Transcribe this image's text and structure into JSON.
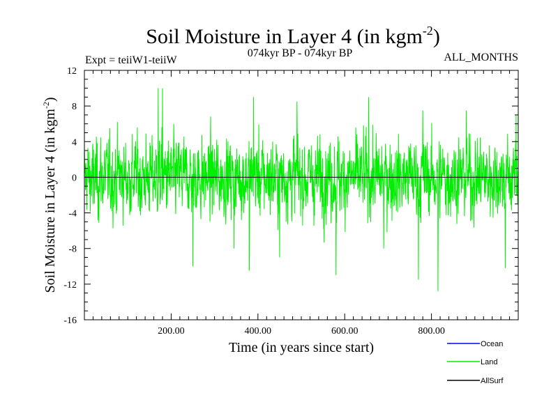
{
  "chart_data": {
    "type": "line",
    "title": "Soil Moisture in Layer 4 (in kgm",
    "title_sup": "-2",
    "title_close": ")",
    "subtitle_left": "Expt = teiiW1-teiiW",
    "subtitle_center": "074kyr BP - 074kyr BP",
    "subtitle_right": "ALL_MONTHS",
    "xlabel": "Time (in years since start)",
    "ylabel": "Soil Moisture in Layer 4 (in kgm",
    "ylabel_sup": "-2",
    "ylabel_close": ")",
    "xlim": [
      0,
      1000
    ],
    "ylim": [
      -16,
      12
    ],
    "x_ticks": [
      200,
      400,
      600,
      800
    ],
    "x_tick_labels": [
      "200.00",
      "400.00",
      "600.00",
      "800.00"
    ],
    "y_ticks": [
      -16,
      -12,
      -8,
      -4,
      0,
      4,
      8,
      12
    ],
    "y_tick_labels": [
      "-16",
      "-12",
      "-8",
      "-4",
      "0",
      "4",
      "8",
      "12"
    ],
    "legend_position": "bottom-right",
    "series": [
      {
        "name": "Ocean",
        "color": "#0000ff",
        "values": []
      },
      {
        "name": "Land",
        "color": "#00ee00",
        "values": [
          {
            "x": 5,
            "y": 1
          },
          {
            "x": 20,
            "y": -3
          },
          {
            "x": 80,
            "y": 3
          },
          {
            "x": 170,
            "y": 10
          },
          {
            "x": 180,
            "y": 10
          },
          {
            "x": 250,
            "y": -10
          },
          {
            "x": 345,
            "y": -8
          },
          {
            "x": 380,
            "y": -10.5
          },
          {
            "x": 390,
            "y": 9
          },
          {
            "x": 450,
            "y": -9
          },
          {
            "x": 490,
            "y": 8.5
          },
          {
            "x": 580,
            "y": -11
          },
          {
            "x": 655,
            "y": 9
          },
          {
            "x": 690,
            "y": -8
          },
          {
            "x": 770,
            "y": -11.5
          },
          {
            "x": 780,
            "y": 7.5
          },
          {
            "x": 815,
            "y": -12.8
          },
          {
            "x": 880,
            "y": 7.5
          },
          {
            "x": 970,
            "y": -10.2
          },
          {
            "x": 995,
            "y": 7
          }
        ]
      },
      {
        "name": "AllSurf",
        "color": "#000000",
        "values": []
      }
    ]
  }
}
